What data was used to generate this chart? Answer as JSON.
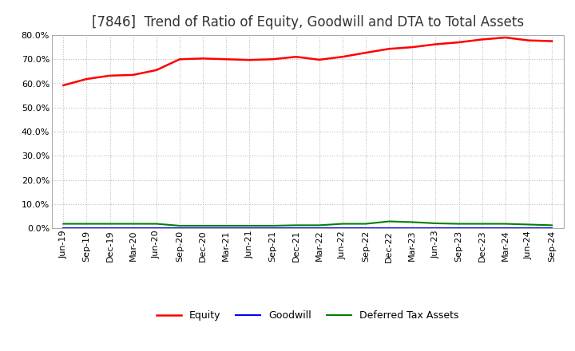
{
  "title": "[7846]  Trend of Ratio of Equity, Goodwill and DTA to Total Assets",
  "x_labels": [
    "Jun-19",
    "Sep-19",
    "Dec-19",
    "Mar-20",
    "Jun-20",
    "Sep-20",
    "Dec-20",
    "Mar-21",
    "Jun-21",
    "Sep-21",
    "Dec-21",
    "Mar-22",
    "Jun-22",
    "Sep-22",
    "Dec-22",
    "Mar-23",
    "Jun-23",
    "Sep-23",
    "Dec-23",
    "Mar-24",
    "Jun-24",
    "Sep-24"
  ],
  "equity": [
    0.592,
    0.618,
    0.632,
    0.635,
    0.655,
    0.7,
    0.703,
    0.7,
    0.697,
    0.7,
    0.71,
    0.698,
    0.71,
    0.727,
    0.743,
    0.75,
    0.762,
    0.77,
    0.782,
    0.79,
    0.778,
    0.775
  ],
  "goodwill": [
    0.0,
    0.0,
    0.0,
    0.0,
    0.0,
    0.0,
    0.0,
    0.0,
    0.0,
    0.0,
    0.0,
    0.0,
    0.0,
    0.0,
    0.0,
    0.0,
    0.0,
    0.0,
    0.0,
    0.0,
    0.0,
    0.0
  ],
  "dta": [
    0.018,
    0.018,
    0.018,
    0.018,
    0.018,
    0.01,
    0.01,
    0.01,
    0.01,
    0.01,
    0.012,
    0.012,
    0.018,
    0.018,
    0.028,
    0.025,
    0.02,
    0.018,
    0.018,
    0.018,
    0.015,
    0.012
  ],
  "equity_color": "#FF0000",
  "goodwill_color": "#0000FF",
  "dta_color": "#008000",
  "bg_color": "#FFFFFF",
  "plot_bg_color": "#FFFFFF",
  "grid_color": "#BBBBBB",
  "ylim": [
    0.0,
    0.8
  ],
  "yticks": [
    0.0,
    0.1,
    0.2,
    0.3,
    0.4,
    0.5,
    0.6,
    0.7,
    0.8
  ],
  "legend_equity": "Equity",
  "legend_goodwill": "Goodwill",
  "legend_dta": "Deferred Tax Assets",
  "title_fontsize": 12,
  "axis_fontsize": 8,
  "legend_fontsize": 9
}
